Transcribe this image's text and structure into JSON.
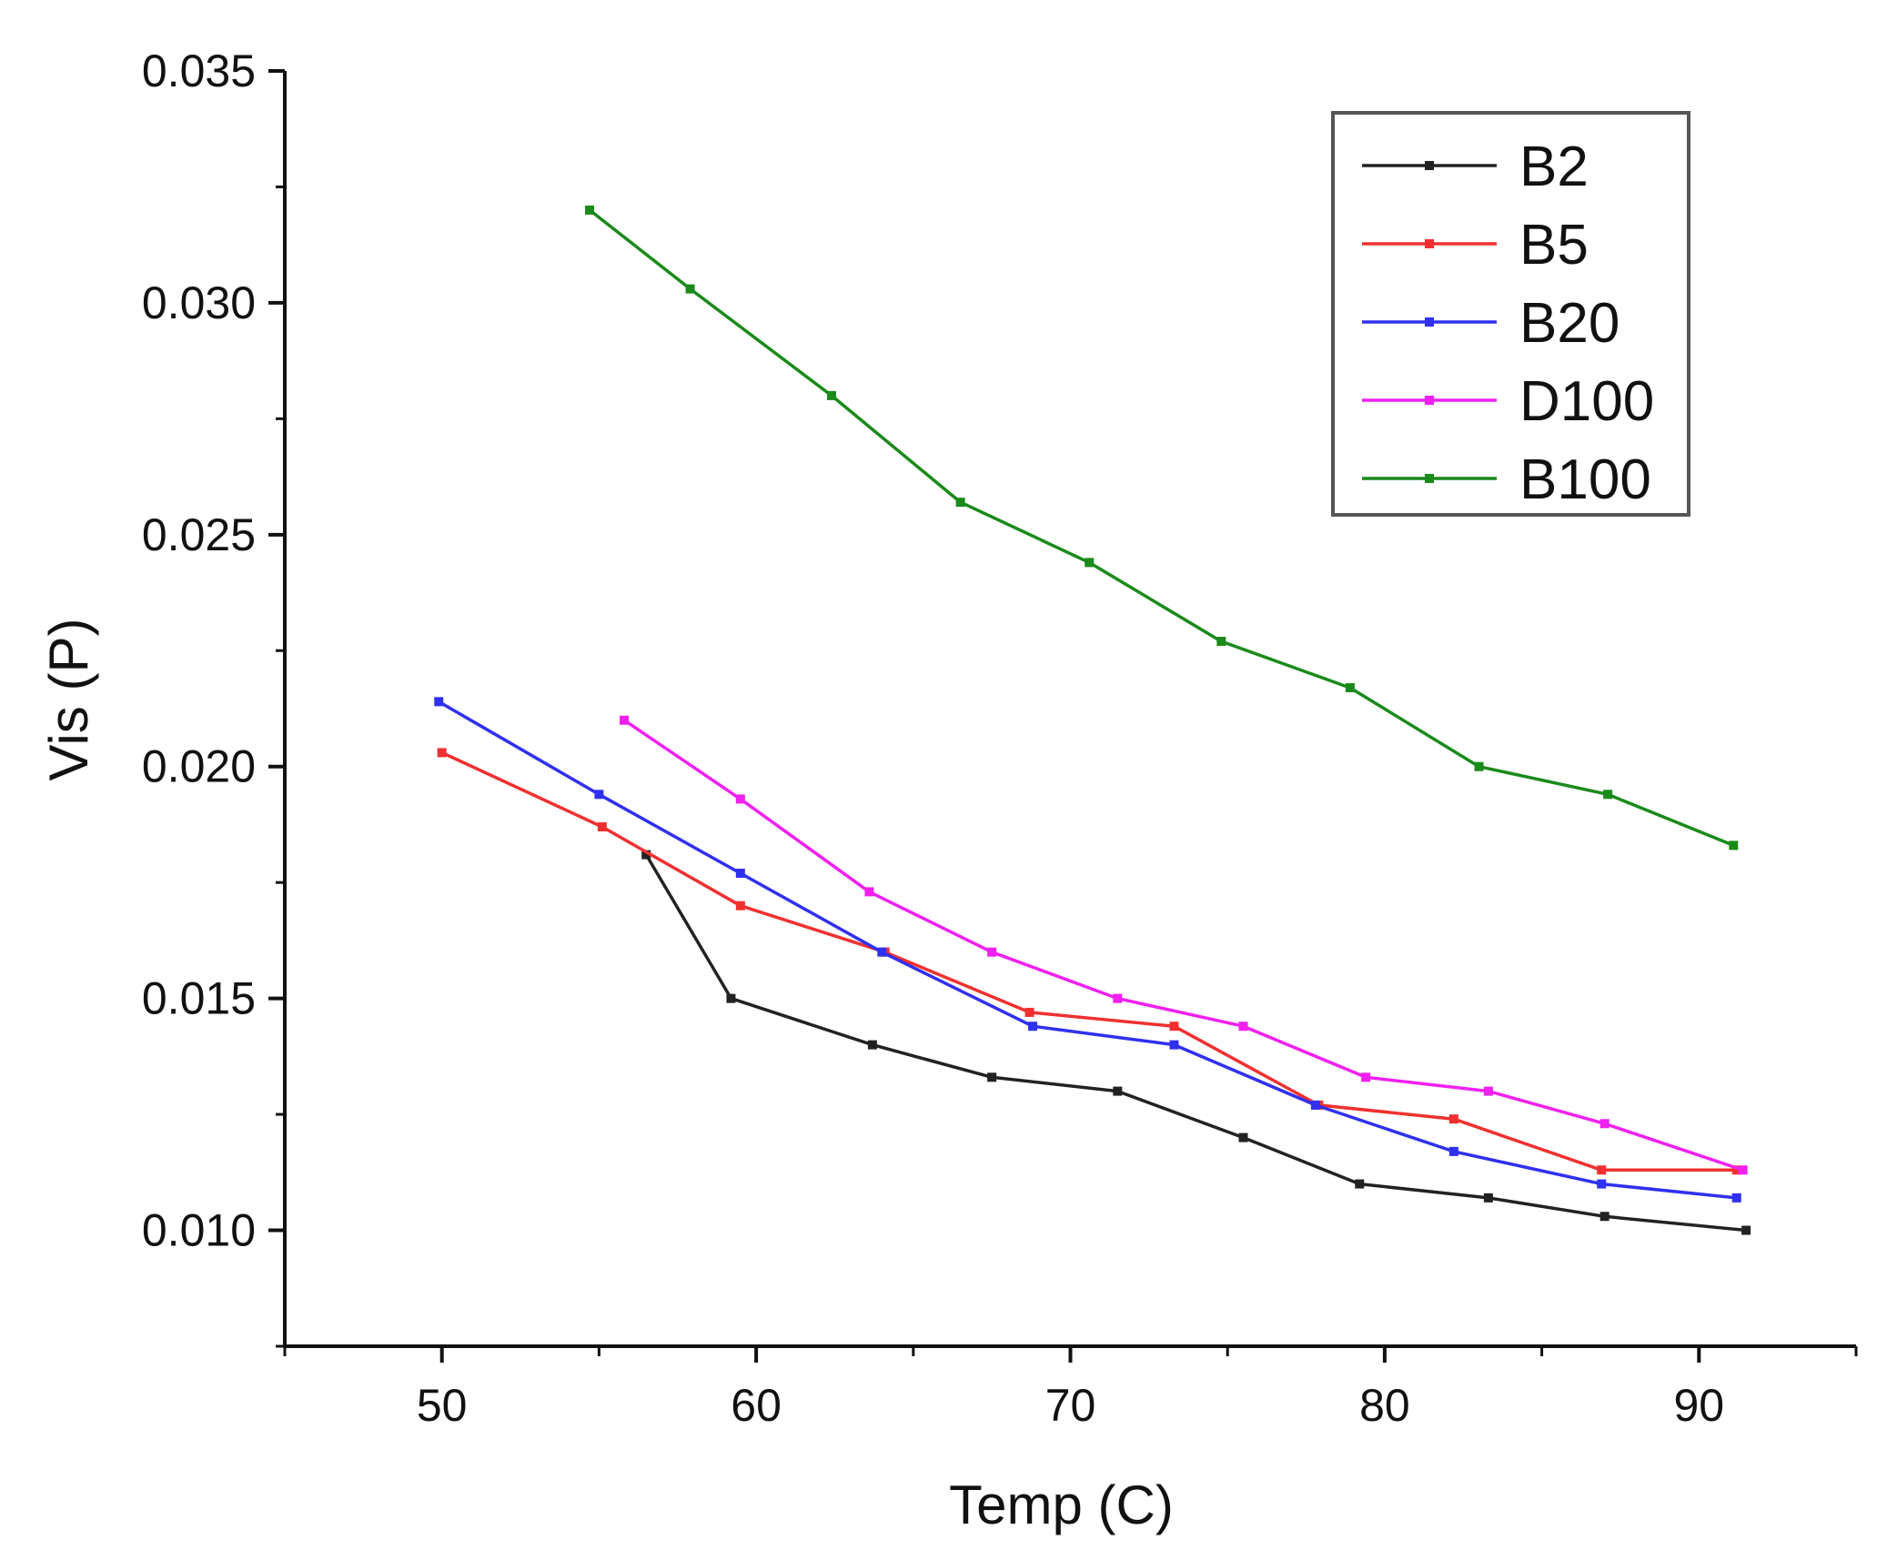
{
  "chart_data": {
    "type": "line",
    "title": "",
    "xlabel": "Temp (C)",
    "ylabel": "Vis (P)",
    "xlim": [
      45,
      95
    ],
    "ylim": [
      0.0075,
      0.035
    ],
    "xticks": [
      50,
      60,
      70,
      80,
      90
    ],
    "xtick_labels": [
      "50",
      "60",
      "70",
      "80",
      "90"
    ],
    "yticks": [
      0.01,
      0.015,
      0.02,
      0.025,
      0.03,
      0.035
    ],
    "ytick_labels": [
      "0.010",
      "0.015",
      "0.020",
      "0.025",
      "0.030",
      "0.035"
    ],
    "legend_position": "top-right",
    "series": [
      {
        "name": "B2",
        "color": "#222222",
        "x": [
          56.5,
          59.2,
          63.7,
          67.5,
          71.5,
          75.5,
          79.2,
          83.3,
          87.0,
          91.5
        ],
        "y": [
          0.0181,
          0.015,
          0.014,
          0.0133,
          0.013,
          0.012,
          0.011,
          0.0107,
          0.0103,
          0.01
        ]
      },
      {
        "name": "B5",
        "color": "#f03030",
        "x": [
          50.0,
          55.1,
          59.5,
          64.1,
          68.7,
          73.3,
          77.9,
          82.2,
          86.9,
          91.2
        ],
        "y": [
          0.0203,
          0.0187,
          0.017,
          0.016,
          0.0147,
          0.0144,
          0.0127,
          0.0124,
          0.0113,
          0.0113
        ]
      },
      {
        "name": "B20",
        "color": "#3030f0",
        "x": [
          49.9,
          55.0,
          59.5,
          64.0,
          68.8,
          73.3,
          77.8,
          82.2,
          86.9,
          91.2
        ],
        "y": [
          0.0214,
          0.0194,
          0.0177,
          0.016,
          0.0144,
          0.014,
          0.0127,
          0.0117,
          0.011,
          0.0107
        ]
      },
      {
        "name": "D100",
        "color": "#f020f0",
        "x": [
          55.8,
          59.5,
          63.6,
          67.5,
          71.5,
          75.5,
          79.4,
          83.3,
          87.0,
          91.4
        ],
        "y": [
          0.021,
          0.0193,
          0.0173,
          0.016,
          0.015,
          0.0144,
          0.0133,
          0.013,
          0.0123,
          0.0113
        ]
      },
      {
        "name": "B100",
        "color": "#1a8a1a",
        "x": [
          54.7,
          57.9,
          62.4,
          66.5,
          70.6,
          74.8,
          78.9,
          83.0,
          87.1,
          91.1
        ],
        "y": [
          0.032,
          0.0303,
          0.028,
          0.0257,
          0.0244,
          0.0227,
          0.0217,
          0.02,
          0.0194,
          0.0183
        ]
      }
    ]
  }
}
